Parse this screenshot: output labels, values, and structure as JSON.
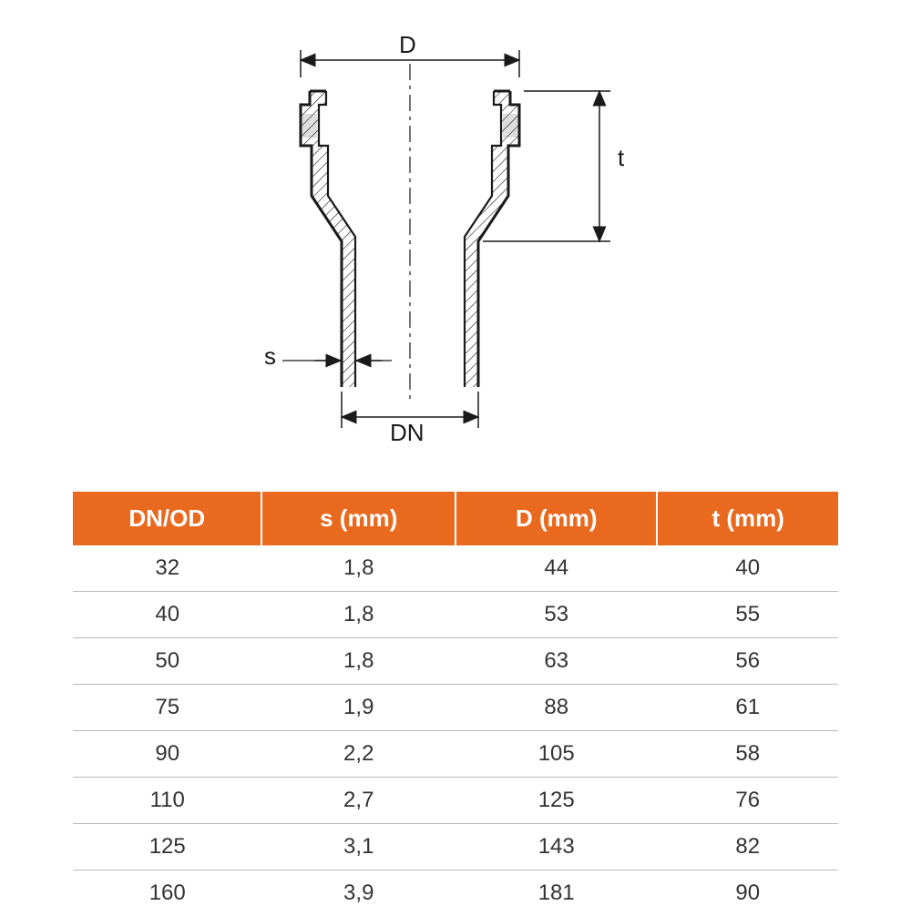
{
  "diagram": {
    "labels": {
      "D": "D",
      "t": "t",
      "s": "s",
      "DN": "DN"
    },
    "colors": {
      "stroke": "#1a1a1a",
      "dash": "#1a1a1a",
      "hatch": "#1a1a1a",
      "text": "#1a1a1a"
    },
    "stroke_width_main": 3,
    "stroke_width_thin": 1.5
  },
  "table": {
    "type": "table",
    "header_bg": "#e96a1f",
    "header_fg": "#ffffff",
    "row_border": "#bbbbbb",
    "cell_fg": "#333333",
    "columns": [
      "DN/OD",
      "s (mm)",
      "D (mm)",
      "t (mm)"
    ],
    "rows": [
      [
        "32",
        "1,8",
        "44",
        "40"
      ],
      [
        "40",
        "1,8",
        "53",
        "55"
      ],
      [
        "50",
        "1,8",
        "63",
        "56"
      ],
      [
        "75",
        "1,9",
        "88",
        "61"
      ],
      [
        "90",
        "2,2",
        "105",
        "58"
      ],
      [
        "110",
        "2,7",
        "125",
        "76"
      ],
      [
        "125",
        "3,1",
        "143",
        "82"
      ],
      [
        "160",
        "3,9",
        "181",
        "90"
      ]
    ],
    "header_fontsize": 26,
    "cell_fontsize": 24
  }
}
